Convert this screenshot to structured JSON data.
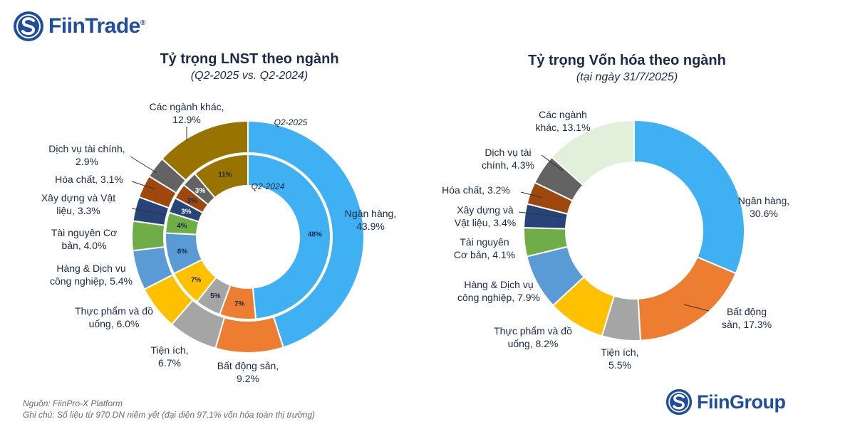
{
  "brand": {
    "fiintrade": "FiinTrade",
    "reg": "®",
    "fiingroup": "FiinGroup",
    "logo_color": "#1f4e9c"
  },
  "chart_data": [
    {
      "type": "pie",
      "variant": "nested-donut",
      "title": "Tỷ trọng LNST theo ngành",
      "subtitle": "(Q2-2025 vs. Q2-2024)",
      "outer_ring_label": "Q2-2025",
      "inner_ring_label": "Q2-2024",
      "categories": [
        "Ngân hàng",
        "Bất động sản",
        "Tiện ích",
        "Thực phẩm và đồ uống",
        "Hàng & Dịch vụ công nghiệp",
        "Tài nguyên Cơ bản",
        "Xây dựng và Vật liệu",
        "Hóa chất",
        "Dịch vụ tài chính",
        "Các ngành khác"
      ],
      "colors": [
        "#3fb1f2",
        "#ed7d31",
        "#a5a5a5",
        "#ffc000",
        "#5b9bd5",
        "#70ad47",
        "#264478",
        "#9e480e",
        "#636363",
        "#997300"
      ],
      "series": [
        {
          "name": "Q2-2025",
          "values": [
            43.9,
            9.2,
            6.7,
            6.0,
            5.4,
            4.0,
            3.3,
            3.1,
            2.9,
            12.9
          ],
          "labels": [
            [
              "Ngân hàng,",
              "43.9%"
            ],
            [
              "Bất động sản,",
              "9.2%"
            ],
            [
              "Tiện ích,",
              "6.7%"
            ],
            [
              "Thực phẩm và đồ",
              "uống, 6.0%"
            ],
            [
              "Hàng & Dịch vụ",
              "công nghiệp, 5.4%"
            ],
            [
              "Tài nguyên Cơ",
              "bản, 4.0%"
            ],
            [
              "Xây dựng và Vật",
              "liệu, 3.3%"
            ],
            [
              "Hóa chất, 3.1%"
            ],
            [
              "Dịch vụ tài chính,",
              "2.9%"
            ],
            [
              "Các ngành khác,",
              "12.9%"
            ]
          ]
        },
        {
          "name": "Q2-2024",
          "values": [
            48,
            7,
            5,
            7,
            8,
            4,
            3,
            3,
            3,
            11
          ],
          "labels": [
            "48%",
            "7%",
            "5%",
            "7%",
            "8%",
            "4%",
            "3%",
            "3%",
            "3%",
            "11%"
          ]
        }
      ]
    },
    {
      "type": "pie",
      "variant": "donut",
      "title": "Tỷ trọng Vốn hóa theo ngành",
      "subtitle": "(tại ngày 31/7/2025)",
      "categories": [
        "Ngân hàng",
        "Bất động sản",
        "Tiện ích",
        "Thực phẩm và đồ uống",
        "Hàng & Dịch vụ công nghiệp",
        "Tài nguyên Cơ bản",
        "Xây dựng và Vật liệu",
        "Hóa chất",
        "Dịch vụ tài chính",
        "Các ngành khác"
      ],
      "colors": [
        "#3fb1f2",
        "#ed7d31",
        "#a5a5a5",
        "#ffc000",
        "#5b9bd5",
        "#70ad47",
        "#264478",
        "#9e480e",
        "#636363",
        "#e2efda"
      ],
      "values": [
        30.6,
        17.3,
        5.5,
        8.2,
        7.9,
        4.1,
        3.4,
        3.2,
        4.3,
        13.1
      ],
      "labels": [
        [
          "Ngân hàng,",
          "30.6%"
        ],
        [
          "Bất động",
          "sản, 17.3%"
        ],
        [
          "Tiện ích,",
          "5.5%"
        ],
        [
          "Thực phẩm và đồ",
          "uống, 8.2%"
        ],
        [
          "Hàng & Dịch vụ",
          "công nghiệp, 7.9%"
        ],
        [
          "Tài nguyên",
          "Cơ bản, 4.1%"
        ],
        [
          "Xây dựng và",
          "Vật liệu, 3.4%"
        ],
        [
          "Hóa chất, 3.2%"
        ],
        [
          "Dịch vụ tài",
          "chính, 4.3%"
        ],
        [
          "Các ngành",
          "khác, 13.1%"
        ]
      ]
    }
  ],
  "footer": {
    "source": "Nguồn: FiinPro-X Platform",
    "note": "Ghi chú: Số liệu từ 970 DN niêm yết (đại diện 97,1% vốn hóa toàn thị trường)"
  }
}
